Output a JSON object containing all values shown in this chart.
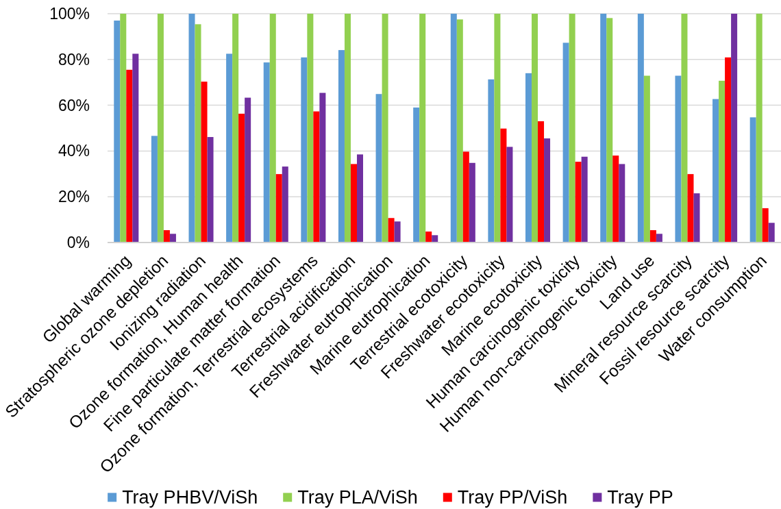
{
  "chart_data": {
    "type": "bar",
    "categories": [
      "Global warming",
      "Stratospheric ozone depletion",
      "Ionizing radiation",
      "Ozone formation, Human health",
      "Fine particulate matter formation",
      "Ozone formation, Terrestrial ecosystems",
      "Terrestrial acidification",
      "Freshwater eutrophication",
      "Marine eutrophication",
      "Terrestrial ecotoxicity",
      "Freshwater ecotoxicity",
      "Marine ecotoxicity",
      "Human carcinogenic toxicity",
      "Human non-carcinogenic toxicity",
      "Land use",
      "Mineral resource scarcity",
      "Fossil resource scarcity",
      "Water consumption"
    ],
    "series": [
      {
        "name": "Tray PHBV/ViSh",
        "color": "#5b9bd5",
        "values": [
          97,
          46.6,
          100,
          82.5,
          78.7,
          80.9,
          84.1,
          64.9,
          59,
          100,
          71.3,
          74,
          87.3,
          100,
          100,
          72.9,
          62.7,
          54.7
        ]
      },
      {
        "name": "Tray PLA/ViSh",
        "color": "#92d050",
        "values": [
          100,
          100,
          95.4,
          100,
          100,
          100,
          100,
          100,
          100,
          97.5,
          100,
          100,
          100,
          98.1,
          72.9,
          100,
          70.7,
          100
        ]
      },
      {
        "name": "Tray PP/ViSh",
        "color": "#ff0000",
        "values": [
          75.5,
          5.4,
          70.3,
          56.3,
          29.9,
          57.3,
          34.3,
          10.7,
          4.8,
          39.7,
          49.8,
          53,
          35.3,
          38,
          5.4,
          29.9,
          80.9,
          15
        ]
      },
      {
        "name": "Tray PP",
        "color": "#7030a0",
        "values": [
          82.5,
          3.8,
          46.1,
          63.3,
          33.2,
          65.4,
          38.5,
          9.2,
          3.2,
          34.8,
          41.8,
          45.5,
          37.5,
          34.3,
          3.8,
          21.5,
          100,
          8.6
        ]
      }
    ],
    "ylim": [
      0,
      100
    ],
    "yticks": [
      {
        "value": 0,
        "label": "0%"
      },
      {
        "value": 20,
        "label": "20%"
      },
      {
        "value": 40,
        "label": "40%"
      },
      {
        "value": 60,
        "label": "60%"
      },
      {
        "value": 80,
        "label": "80%"
      },
      {
        "value": 100,
        "label": "100%"
      }
    ],
    "grid": "y",
    "legend": "bottom"
  }
}
